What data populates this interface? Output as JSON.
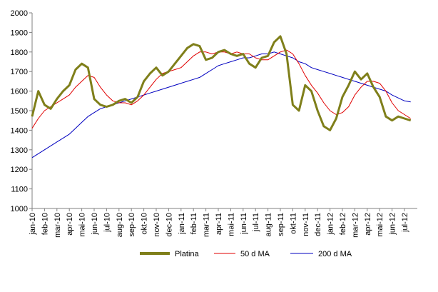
{
  "chart_data": {
    "type": "line",
    "categories": [
      "jan-10",
      null,
      "feb-10",
      null,
      "mar-10",
      null,
      "apr-10",
      null,
      "mai-10",
      null,
      "jun-10",
      null,
      "jul-10",
      null,
      "aug-10",
      null,
      "sep-10",
      null,
      "okt-10",
      null,
      "nov-10",
      null,
      "dec-10",
      null,
      "jan-11",
      null,
      "feb-11",
      null,
      "mar-11",
      null,
      "apr-11",
      null,
      "mai-11",
      null,
      "jun-11",
      null,
      "jul-11",
      null,
      "aug-11",
      null,
      "sep-11",
      null,
      "okt-11",
      null,
      "nov-11",
      null,
      "dec-11",
      null,
      "jan-12",
      null,
      "feb-12",
      null,
      "mar-12",
      null,
      "apr-12",
      null,
      "mai-12",
      null,
      "jun-12",
      null,
      "jul-12",
      null
    ],
    "series": [
      {
        "name": "Platina",
        "color": "#7f7f1a",
        "values": [
          1470,
          1600,
          1530,
          1510,
          1560,
          1600,
          1630,
          1710,
          1740,
          1720,
          1560,
          1530,
          1520,
          1530,
          1550,
          1560,
          1540,
          1570,
          1650,
          1690,
          1720,
          1680,
          1700,
          1740,
          1780,
          1820,
          1840,
          1830,
          1760,
          1770,
          1800,
          1810,
          1790,
          1780,
          1790,
          1740,
          1720,
          1770,
          1780,
          1850,
          1880,
          1790,
          1530,
          1500,
          1630,
          1600,
          1500,
          1420,
          1400,
          1460,
          1570,
          1630,
          1700,
          1660,
          1690,
          1620,
          1570,
          1470,
          1450,
          1470,
          1460,
          1450
        ]
      },
      {
        "name": "50 d MA",
        "color": "#e00000",
        "values": [
          1410,
          1460,
          1500,
          1520,
          1540,
          1560,
          1580,
          1620,
          1650,
          1680,
          1670,
          1620,
          1580,
          1550,
          1540,
          1540,
          1530,
          1550,
          1580,
          1620,
          1660,
          1690,
          1700,
          1710,
          1720,
          1750,
          1780,
          1800,
          1800,
          1790,
          1800,
          1800,
          1790,
          1800,
          1790,
          1790,
          1770,
          1760,
          1760,
          1780,
          1800,
          1810,
          1790,
          1740,
          1680,
          1630,
          1590,
          1540,
          1500,
          1480,
          1490,
          1520,
          1580,
          1620,
          1650,
          1650,
          1640,
          1600,
          1540,
          1500,
          1480,
          1460
        ]
      },
      {
        "name": "200 d MA",
        "color": "#0000c0",
        "values": [
          1260,
          1280,
          1300,
          1320,
          1340,
          1360,
          1380,
          1410,
          1440,
          1470,
          1490,
          1510,
          1520,
          1530,
          1540,
          1550,
          1560,
          1570,
          1580,
          1590,
          1600,
          1610,
          1620,
          1630,
          1640,
          1650,
          1660,
          1670,
          1690,
          1710,
          1730,
          1740,
          1750,
          1760,
          1770,
          1770,
          1780,
          1790,
          1790,
          1800,
          1790,
          1780,
          1770,
          1750,
          1740,
          1720,
          1710,
          1700,
          1690,
          1680,
          1670,
          1660,
          1650,
          1640,
          1630,
          1620,
          1610,
          1600,
          1580,
          1565,
          1550,
          1545
        ]
      }
    ],
    "ylim": [
      1000,
      2000
    ],
    "yticks": [
      1000,
      1100,
      1200,
      1300,
      1400,
      1500,
      1600,
      1700,
      1800,
      1900,
      2000
    ],
    "grid": false,
    "legend": "bottom"
  }
}
